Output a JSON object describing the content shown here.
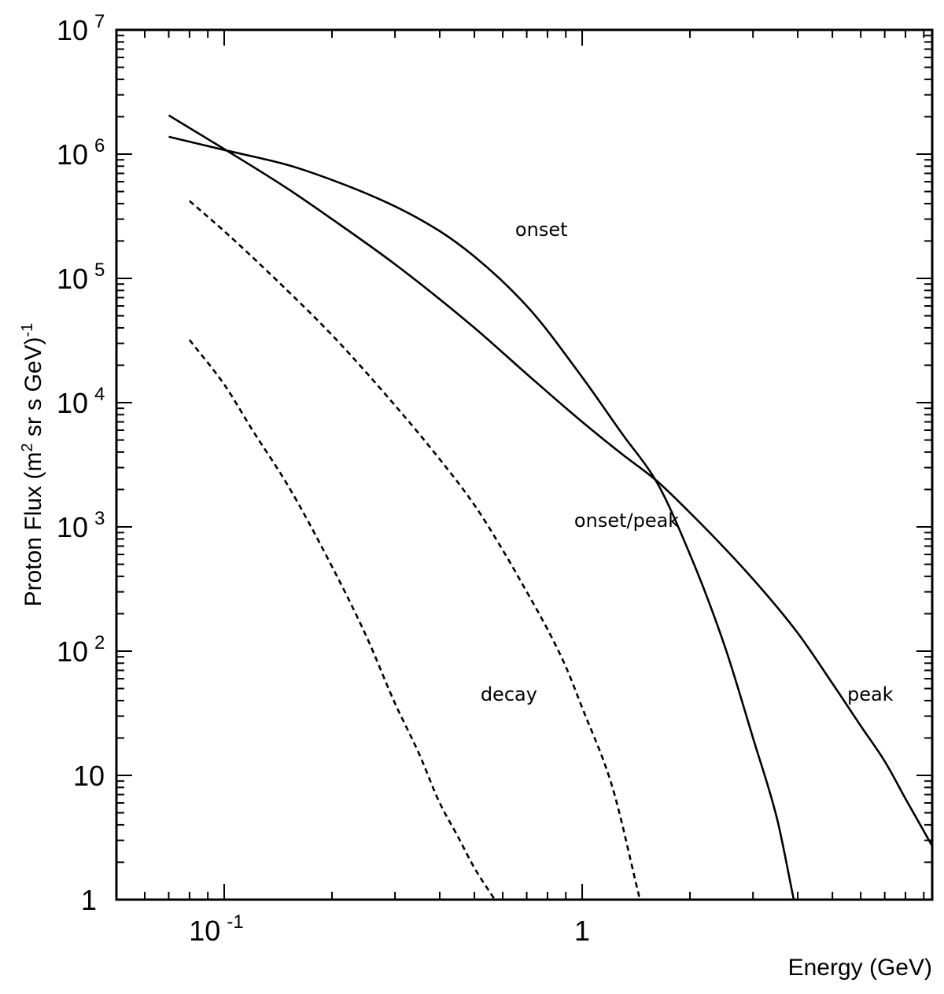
{
  "chart_data": {
    "type": "line",
    "title": "",
    "xlabel": "Energy (GeV)",
    "ylabel": "Proton Flux (m² sr s GeV)⁻¹",
    "ylabel_parts": {
      "pre": "Proton Flux (m",
      "sup1": "2",
      "mid": " sr s GeV)",
      "sup2": "-1"
    },
    "xscale": "log",
    "yscale": "log",
    "xlim": [
      0.05,
      9.5
    ],
    "ylim": [
      1,
      10000000
    ],
    "grid": false,
    "legend": "none",
    "x_ticks": [
      {
        "value": 0.1,
        "base": "10",
        "exp": "-1"
      },
      {
        "value": 1,
        "base": "1",
        "exp": ""
      }
    ],
    "y_ticks": [
      {
        "value": 1,
        "base": "1",
        "exp": ""
      },
      {
        "value": 10,
        "base": "10",
        "exp": ""
      },
      {
        "value": 100,
        "base": "10",
        "exp": "2"
      },
      {
        "value": 1000,
        "base": "10",
        "exp": "3"
      },
      {
        "value": 10000,
        "base": "10",
        "exp": "4"
      },
      {
        "value": 100000,
        "base": "10",
        "exp": "5"
      },
      {
        "value": 1000000,
        "base": "10",
        "exp": "6"
      },
      {
        "value": 10000000,
        "base": "10",
        "exp": "7"
      }
    ],
    "series": [
      {
        "label": "onset",
        "style": "solid",
        "x": [
          0.07,
          0.1,
          0.15,
          0.2,
          0.3,
          0.4,
          0.5,
          0.7,
          1.0,
          1.3,
          1.6,
          2.0,
          2.5,
          3.0,
          3.5,
          3.9
        ],
        "y": [
          1380000,
          1080000,
          820000,
          620000,
          380000,
          240000,
          150000,
          60000,
          16000,
          5500,
          2400,
          600,
          110,
          20,
          4.5,
          1
        ]
      },
      {
        "label": "peak",
        "style": "solid",
        "x": [
          0.07,
          0.1,
          0.15,
          0.2,
          0.3,
          0.5,
          0.7,
          1.0,
          1.3,
          1.6,
          2.0,
          3.0,
          4.0,
          5.0,
          6.0,
          7.0,
          8.0,
          9.5
        ],
        "y": [
          2050000,
          1100000,
          530000,
          300000,
          130000,
          40000,
          17000,
          7000,
          3800,
          2400,
          1300,
          380,
          140,
          55,
          25,
          13,
          6.5,
          2.7
        ]
      },
      {
        "label": "onset/peak",
        "style": "dashed",
        "x": [
          0.08,
          0.1,
          0.15,
          0.2,
          0.3,
          0.4,
          0.5,
          0.6,
          0.7,
          0.8,
          0.9,
          1.0,
          1.2,
          1.45
        ],
        "y": [
          420000,
          240000,
          80000,
          35000,
          9500,
          3500,
          1500,
          650,
          300,
          150,
          75,
          35,
          9,
          1
        ]
      },
      {
        "label": "decay",
        "style": "dashed",
        "x": [
          0.08,
          0.1,
          0.12,
          0.15,
          0.2,
          0.25,
          0.3,
          0.35,
          0.4,
          0.45,
          0.5,
          0.57
        ],
        "y": [
          32000,
          14000,
          6000,
          2200,
          480,
          130,
          38,
          15,
          6,
          3.2,
          1.8,
          1
        ]
      }
    ],
    "annotations": [
      {
        "text": "onset",
        "series": "onset",
        "x": 0.65,
        "y": 220000
      },
      {
        "text": "onset/peak",
        "series": "onset/peak",
        "x": 0.95,
        "y": 1000
      },
      {
        "text": "decay",
        "series": "decay",
        "x": 0.52,
        "y": 40
      },
      {
        "text": "peak",
        "series": "peak",
        "x": 5.5,
        "y": 40
      }
    ]
  }
}
